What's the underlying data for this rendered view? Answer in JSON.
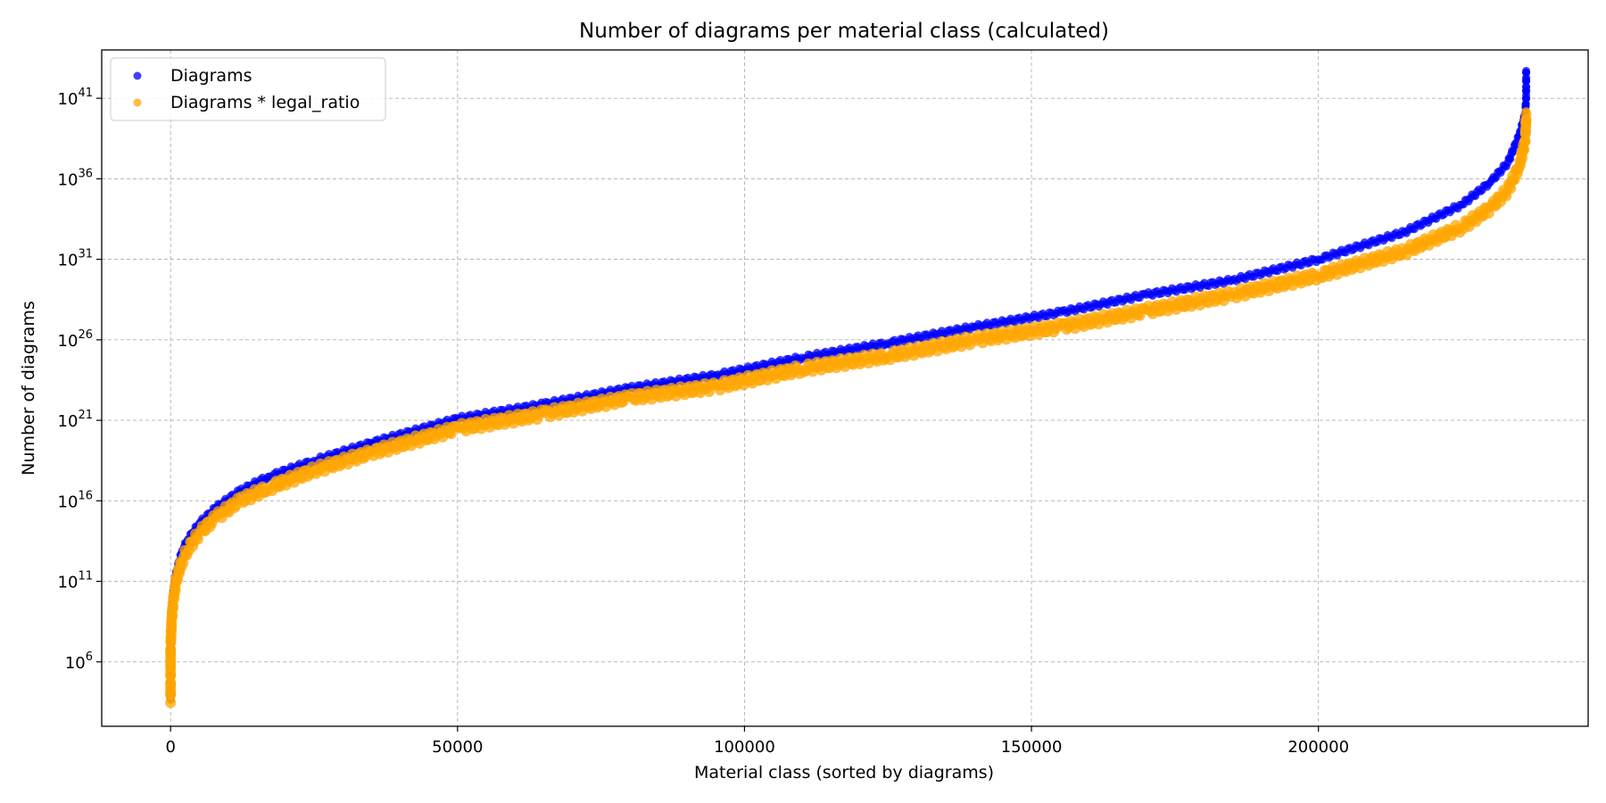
{
  "chart_data": {
    "type": "scatter",
    "title": "Number of diagrams per material class (calculated)",
    "xlabel": "Material class (sorted by diagrams)",
    "ylabel": "Number of diagrams",
    "xlim": [
      -12000,
      247000
    ],
    "ylim_log10": [
      2.0,
      44.0
    ],
    "y_scale": "log",
    "x_ticks": [
      0,
      50000,
      100000,
      150000,
      200000
    ],
    "x_tick_labels": [
      "0",
      "50000",
      "100000",
      "150000",
      "200000"
    ],
    "y_ticks_log10": [
      6,
      11,
      16,
      21,
      26,
      31,
      36,
      41
    ],
    "y_tick_labels": [
      {
        "base": "10",
        "exp": "6"
      },
      {
        "base": "10",
        "exp": "11"
      },
      {
        "base": "10",
        "exp": "16"
      },
      {
        "base": "10",
        "exp": "21"
      },
      {
        "base": "10",
        "exp": "26"
      },
      {
        "base": "10",
        "exp": "31"
      },
      {
        "base": "10",
        "exp": "36"
      },
      {
        "base": "10",
        "exp": "41"
      }
    ],
    "grid": true,
    "legend_position": "top-left",
    "series": [
      {
        "name": "Diagrams",
        "color": "#0000ff",
        "points": [
          [
            0,
            3.7
          ],
          [
            0,
            5.4
          ],
          [
            0,
            7.6
          ],
          [
            200,
            9.2
          ],
          [
            500,
            10.4
          ],
          [
            1000,
            11.6
          ],
          [
            2000,
            12.9
          ],
          [
            3000,
            13.6
          ],
          [
            5000,
            14.6
          ],
          [
            8000,
            15.6
          ],
          [
            12000,
            16.6
          ],
          [
            17000,
            17.5
          ],
          [
            25000,
            18.5
          ],
          [
            35000,
            19.6
          ],
          [
            50000,
            21.1
          ],
          [
            65000,
            22.0
          ],
          [
            80000,
            23.0
          ],
          [
            95000,
            23.8
          ],
          [
            110000,
            24.9
          ],
          [
            125000,
            25.8
          ],
          [
            140000,
            26.8
          ],
          [
            155000,
            27.7
          ],
          [
            170000,
            28.8
          ],
          [
            185000,
            29.7
          ],
          [
            200000,
            31.0
          ],
          [
            215000,
            32.7
          ],
          [
            225000,
            34.4
          ],
          [
            230000,
            35.8
          ],
          [
            233000,
            37.0
          ],
          [
            235000,
            38.7
          ],
          [
            236000,
            40.0
          ],
          [
            236200,
            41.0
          ],
          [
            236200,
            41.7
          ],
          [
            236200,
            42.7
          ]
        ]
      },
      {
        "name": "Diagrams * legal_ratio",
        "color": "#ffa500",
        "points": [
          [
            0,
            3.6
          ],
          [
            0,
            5.2
          ],
          [
            0,
            7.0
          ],
          [
            200,
            8.7
          ],
          [
            500,
            9.9
          ],
          [
            1000,
            11.1
          ],
          [
            2000,
            12.3
          ],
          [
            3000,
            13.0
          ],
          [
            5000,
            14.0
          ],
          [
            8000,
            15.0
          ],
          [
            12000,
            16.0
          ],
          [
            17000,
            16.8
          ],
          [
            25000,
            17.9
          ],
          [
            35000,
            19.0
          ],
          [
            50000,
            20.5
          ],
          [
            65000,
            21.4
          ],
          [
            80000,
            22.4
          ],
          [
            95000,
            23.1
          ],
          [
            110000,
            24.2
          ],
          [
            125000,
            25.0
          ],
          [
            140000,
            26.0
          ],
          [
            155000,
            26.8
          ],
          [
            170000,
            27.8
          ],
          [
            185000,
            28.8
          ],
          [
            200000,
            30.0
          ],
          [
            215000,
            31.5
          ],
          [
            225000,
            33.0
          ],
          [
            230000,
            34.2
          ],
          [
            233000,
            35.3
          ],
          [
            235000,
            36.8
          ],
          [
            236000,
            38.3
          ],
          [
            236200,
            39.8
          ],
          [
            236200,
            40.2
          ]
        ]
      }
    ]
  }
}
